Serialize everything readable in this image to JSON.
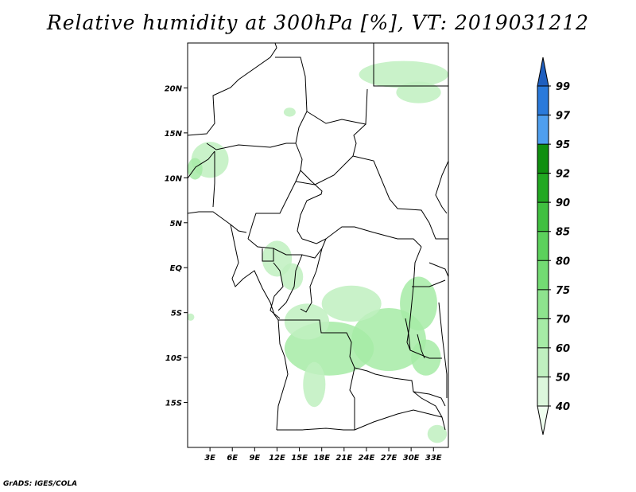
{
  "title": "Relative humidity at 300hPa [%], VT: 2019031212",
  "credit": "GrADS: IGES/COLA",
  "map": {
    "lon_range": [
      0,
      35
    ],
    "lat_range": [
      -20,
      25
    ],
    "lat_ticks": [
      {
        "value": 20,
        "label": "20N"
      },
      {
        "value": 15,
        "label": "15N"
      },
      {
        "value": 10,
        "label": "10N"
      },
      {
        "value": 5,
        "label": "5N"
      },
      {
        "value": 0,
        "label": "EQ"
      },
      {
        "value": -5,
        "label": "5S"
      },
      {
        "value": -10,
        "label": "10S"
      },
      {
        "value": -15,
        "label": "15S"
      }
    ],
    "lon_ticks": [
      {
        "value": 3,
        "label": "3E"
      },
      {
        "value": 6,
        "label": "6E"
      },
      {
        "value": 9,
        "label": "9E"
      },
      {
        "value": 12,
        "label": "12E"
      },
      {
        "value": 15,
        "label": "15E"
      },
      {
        "value": 18,
        "label": "18E"
      },
      {
        "value": 21,
        "label": "21E"
      },
      {
        "value": 24,
        "label": "24E"
      },
      {
        "value": 27,
        "label": "27E"
      },
      {
        "value": 30,
        "label": "30E"
      },
      {
        "value": 33,
        "label": "33E"
      }
    ],
    "humidity_zones": [
      {
        "lon": 19,
        "lat": -9,
        "rlon": 6,
        "rlat": 3,
        "level": 60
      },
      {
        "lon": 27,
        "lat": -8,
        "rlon": 5,
        "rlat": 3.5,
        "level": 60
      },
      {
        "lon": 22,
        "lat": -4,
        "rlon": 4,
        "rlat": 2,
        "level": 50
      },
      {
        "lon": 16,
        "lat": -6,
        "rlon": 3,
        "rlat": 2,
        "level": 50
      },
      {
        "lon": 31,
        "lat": -4,
        "rlon": 2.5,
        "rlat": 3,
        "level": 60
      },
      {
        "lon": 32,
        "lat": -10,
        "rlon": 2,
        "rlat": 2,
        "level": 60
      },
      {
        "lon": 17,
        "lat": -13,
        "rlon": 1.5,
        "rlat": 2.5,
        "level": 50
      },
      {
        "lon": 12,
        "lat": 1,
        "rlon": 2,
        "rlat": 2,
        "level": 50
      },
      {
        "lon": 14,
        "lat": -1,
        "rlon": 1.5,
        "rlat": 1.5,
        "level": 50
      },
      {
        "lon": 3,
        "lat": 12,
        "rlon": 2.5,
        "rlat": 2,
        "level": 50
      },
      {
        "lon": 1,
        "lat": 11,
        "rlon": 1,
        "rlat": 1.2,
        "level": 60
      },
      {
        "lon": 29,
        "lat": 21.5,
        "rlon": 6,
        "rlat": 1.5,
        "level": 50
      },
      {
        "lon": 31,
        "lat": 19.5,
        "rlon": 3,
        "rlat": 1.2,
        "level": 50
      },
      {
        "lon": 33.5,
        "lat": -18.5,
        "rlon": 1.3,
        "rlat": 1,
        "level": 50
      },
      {
        "lon": 13.7,
        "lat": 17.3,
        "rlon": 0.8,
        "rlat": 0.5,
        "level": 50
      },
      {
        "lon": 0.4,
        "lat": -5.5,
        "rlon": 0.5,
        "rlat": 0.4,
        "level": 50
      }
    ]
  },
  "colorbar": {
    "levels": [
      "40",
      "50",
      "60",
      "70",
      "75",
      "80",
      "85",
      "90",
      "92",
      "95",
      "97",
      "99"
    ],
    "colors": [
      "#f0fff0",
      "#dcf7dc",
      "#c0f0c0",
      "#a6eba6",
      "#8ee38e",
      "#73db73",
      "#5cd15c",
      "#40c040",
      "#22a822",
      "#108f10",
      "#4f9fef",
      "#2a7adb",
      "#1f5fbf"
    ]
  }
}
